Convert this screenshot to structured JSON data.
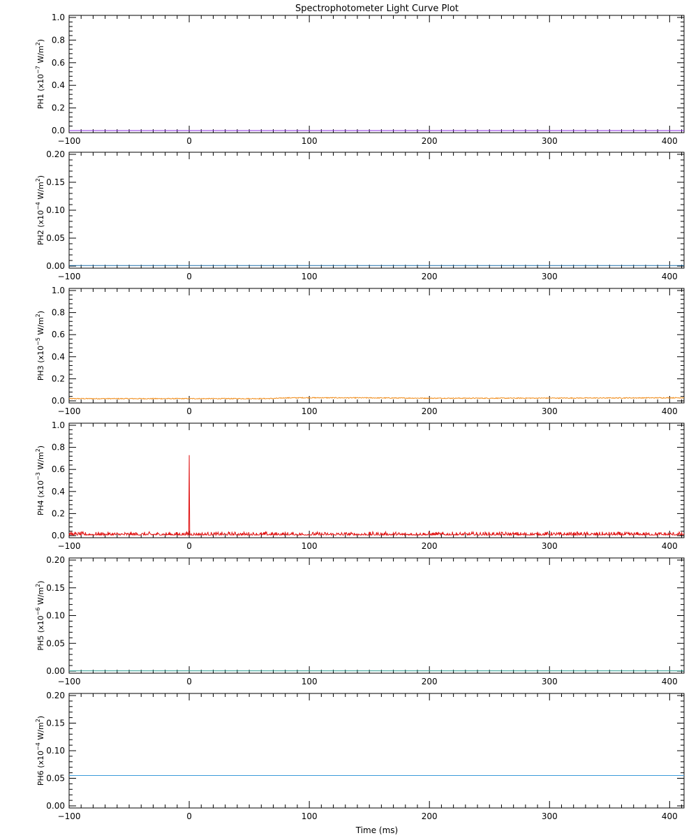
{
  "chart_data": {
    "type": "line",
    "title": "Spectrophotometer Light Curve Plot",
    "xlabel": "Time (ms)",
    "xlim": [
      -100,
      412
    ],
    "xticks": [
      -100,
      0,
      100,
      200,
      300,
      400
    ],
    "xtick_labels": [
      "−100",
      "0",
      "100",
      "200",
      "300",
      "400"
    ],
    "panels": [
      {
        "name": "PH1",
        "ylabel_prefix": "PH1",
        "unit_label": "(x10",
        "unit_exp": "−7",
        "unit_mid": " W/m",
        "unit_sq": "2",
        "unit_end": ")",
        "ylim": [
          0,
          1.0
        ],
        "yticks": [
          0,
          0.2,
          0.4,
          0.6,
          0.8,
          1.0
        ],
        "ytick_labels": [
          "0.0",
          "0.2",
          "0.4",
          "0.6",
          "0.8",
          "1.0"
        ],
        "color": "#8a2be2",
        "series": {
          "kind": "flat",
          "value": 0.0
        }
      },
      {
        "name": "PH2",
        "ylabel_prefix": "PH2",
        "unit_label": "(x10",
        "unit_exp": "−4",
        "unit_mid": " W/m",
        "unit_sq": "2",
        "unit_end": ")",
        "ylim": [
          0,
          0.2
        ],
        "yticks": [
          0,
          0.05,
          0.1,
          0.15,
          0.2
        ],
        "ytick_labels": [
          "0.00",
          "0.05",
          "0.10",
          "0.15",
          "0.20"
        ],
        "color": "#1e6fa8",
        "series": {
          "kind": "flat",
          "value": 0.001
        }
      },
      {
        "name": "PH3",
        "ylabel_prefix": "PH3",
        "unit_label": "(x10",
        "unit_exp": "−5",
        "unit_mid": " W/m",
        "unit_sq": "2",
        "unit_end": ")",
        "ylim": [
          0,
          1.0
        ],
        "yticks": [
          0,
          0.2,
          0.4,
          0.6,
          0.8,
          1.0
        ],
        "ytick_labels": [
          "0.0",
          "0.2",
          "0.4",
          "0.6",
          "0.8",
          "1.0"
        ],
        "color": "#f08c1a",
        "series": {
          "kind": "noise",
          "x": [
            -100,
            -50,
            0,
            50,
            70,
            80,
            100,
            150,
            200,
            250,
            300,
            350,
            412
          ],
          "y": [
            0.02,
            0.02,
            0.02,
            0.02,
            0.021,
            0.027,
            0.028,
            0.027,
            0.024,
            0.024,
            0.025,
            0.026,
            0.028
          ],
          "noise": 0.004
        }
      },
      {
        "name": "PH4",
        "ylabel_prefix": "PH4",
        "unit_label": "(x10",
        "unit_exp": "−3",
        "unit_mid": " W/m",
        "unit_sq": "2",
        "unit_end": ")",
        "ylim": [
          0,
          1.0
        ],
        "yticks": [
          0,
          0.2,
          0.4,
          0.6,
          0.8,
          1.0
        ],
        "ytick_labels": [
          "0.0",
          "0.2",
          "0.4",
          "0.6",
          "0.8",
          "1.0"
        ],
        "color": "#e01010",
        "series": {
          "kind": "spiky",
          "baseline": 0.005,
          "noise": 0.012,
          "spike": {
            "x": 0,
            "y": 0.73
          }
        }
      },
      {
        "name": "PH5",
        "ylabel_prefix": "PH5",
        "unit_label": "(x10",
        "unit_exp": "−6",
        "unit_mid": " W/m",
        "unit_sq": "2",
        "unit_end": ")",
        "ylim": [
          0,
          0.2
        ],
        "yticks": [
          0,
          0.05,
          0.1,
          0.15,
          0.2
        ],
        "ytick_labels": [
          "0.00",
          "0.05",
          "0.10",
          "0.15",
          "0.20"
        ],
        "color": "#2a9d8f",
        "series": {
          "kind": "flat",
          "value": 0.0005
        }
      },
      {
        "name": "PH6",
        "ylabel_prefix": "PH6",
        "unit_label": "(x10",
        "unit_exp": "−4",
        "unit_mid": " W/m",
        "unit_sq": "2",
        "unit_end": ")",
        "ylim": [
          0,
          0.2
        ],
        "yticks": [
          0,
          0.05,
          0.1,
          0.15,
          0.2
        ],
        "ytick_labels": [
          "0.00",
          "0.05",
          "0.10",
          "0.15",
          "0.20"
        ],
        "color": "#3a9ad9",
        "series": {
          "kind": "flat",
          "value": 0.055
        }
      }
    ]
  }
}
